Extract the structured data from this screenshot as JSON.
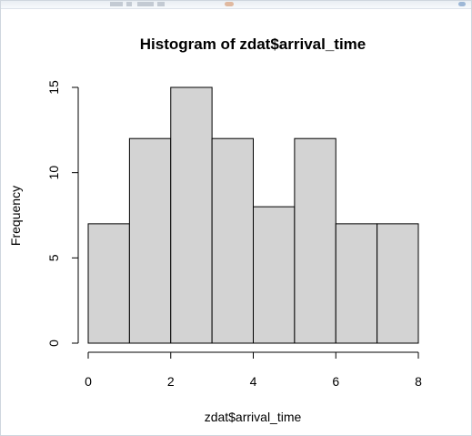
{
  "chart_data": {
    "type": "bar",
    "title": "Histogram of zdat$arrival_time",
    "xlabel": "zdat$arrival_time",
    "ylabel": "Frequency",
    "bins": [
      [
        0,
        1
      ],
      [
        1,
        2
      ],
      [
        2,
        3
      ],
      [
        3,
        4
      ],
      [
        4,
        5
      ],
      [
        5,
        6
      ],
      [
        6,
        7
      ],
      [
        7,
        8
      ]
    ],
    "values": [
      7,
      12,
      15,
      12,
      8,
      12,
      7,
      7
    ],
    "xlim": [
      0,
      8
    ],
    "ylim": [
      0,
      15
    ],
    "xticks": [
      0,
      2,
      4,
      6,
      8
    ],
    "yticks": [
      0,
      5,
      10,
      15
    ],
    "grid": false,
    "bar_fill": "#d3d3d3",
    "bar_stroke": "#000000"
  }
}
